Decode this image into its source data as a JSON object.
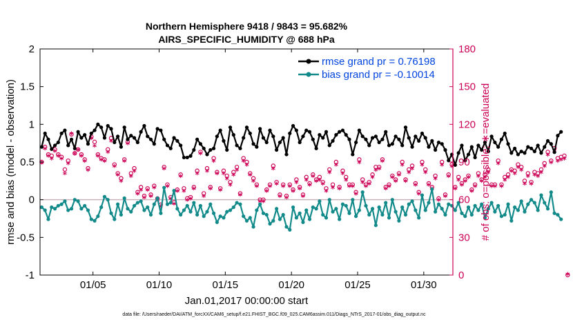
{
  "chart_data": {
    "type": "line",
    "title": "Northern Hemisphere 9418 / 9843 = 95.682%",
    "subtitle": "AIRS_SPECIFIC_HUMIDITY @ 688 hPa",
    "xlabel": "Jan.01,2017 00:00:00 start",
    "ylabel": "rmse and bias (model - observation)",
    "y2label": "# of obs: o=possible; ∗=evaluated",
    "footer": "data file: /Users/raeder/DAI/ATM_forcXX/CAM6_setup/f.e21.FHIST_BGC.f09_025.CAM6assim.011/Diags_NTrS_2017-01/obs_diag_output.nc",
    "xlim": [
      1,
      32.2
    ],
    "ylim": [
      -1,
      2
    ],
    "y2lim": [
      0,
      180
    ],
    "xticks": [
      {
        "v": 5,
        "label": "01/05"
      },
      {
        "v": 10,
        "label": "01/10"
      },
      {
        "v": 15,
        "label": "01/15"
      },
      {
        "v": 20,
        "label": "01/20"
      },
      {
        "v": 25,
        "label": "01/25"
      },
      {
        "v": 30,
        "label": "01/30"
      }
    ],
    "yticks": [
      {
        "v": -1,
        "label": "-1"
      },
      {
        "v": -0.5,
        "label": "-0.5"
      },
      {
        "v": 0,
        "label": "0"
      },
      {
        "v": 0.5,
        "label": "0.5"
      },
      {
        "v": 1,
        "label": "1"
      },
      {
        "v": 1.5,
        "label": "1.5"
      },
      {
        "v": 2,
        "label": "2"
      }
    ],
    "y2ticks": [
      {
        "v": 0,
        "label": "0"
      },
      {
        "v": 30,
        "label": "30"
      },
      {
        "v": 60,
        "label": "60"
      },
      {
        "v": 90,
        "label": "90"
      },
      {
        "v": 120,
        "label": "120"
      },
      {
        "v": 150,
        "label": "150"
      },
      {
        "v": 180,
        "label": "180"
      }
    ],
    "x": {
      "start": 1.125,
      "step": 0.25
    },
    "series": [
      {
        "name": "rmse grand pr = 0.76198",
        "color": "#000000",
        "values": [
          0.7,
          0.88,
          0.8,
          0.67,
          0.72,
          0.76,
          0.88,
          0.92,
          0.72,
          0.8,
          0.68,
          0.9,
          0.82,
          0.86,
          0.74,
          0.88,
          0.92,
          1.0,
          0.96,
          0.82,
          0.98,
          0.94,
          0.76,
          0.84,
          0.7,
          0.96,
          0.8,
          0.85,
          0.82,
          0.76,
          0.9,
          0.98,
          0.84,
          0.8,
          0.74,
          0.94,
          0.92,
          0.8,
          0.72,
          0.68,
          0.82,
          0.78,
          0.72,
          0.56,
          0.56,
          0.58,
          0.66,
          0.8,
          0.74,
          0.68,
          0.6,
          0.66,
          0.68,
          0.84,
          0.92,
          0.78,
          0.66,
          0.96,
          0.86,
          0.72,
          0.68,
          0.82,
          0.96,
          0.88,
          0.74,
          0.7,
          0.94,
          0.82,
          0.76,
          0.92,
          0.84,
          0.66,
          0.76,
          0.82,
          0.6,
          0.88,
          0.98,
          0.92,
          0.76,
          0.84,
          0.92,
          0.9,
          0.8,
          0.68,
          0.86,
          0.82,
          0.9,
          0.72,
          0.78,
          0.86,
          0.9,
          0.92,
          0.86,
          0.8,
          0.6,
          0.76,
          0.92,
          0.84,
          0.8,
          0.72,
          0.82,
          0.84,
          0.76,
          0.8,
          0.9,
          0.72,
          0.74,
          0.84,
          0.8,
          0.72,
          0.96,
          0.82,
          0.7,
          0.84,
          0.78,
          0.88,
          0.82,
          0.7,
          0.78,
          0.66,
          0.76,
          0.74,
          0.66,
          0.52,
          0.6,
          0.46,
          0.62,
          0.72,
          0.52,
          0.6,
          0.7,
          0.56,
          0.72,
          0.66,
          0.76,
          0.64,
          0.84,
          0.76,
          0.7,
          0.8,
          0.88,
          0.74,
          0.62,
          0.68,
          0.6,
          0.64,
          0.62,
          0.7,
          0.68,
          0.64,
          0.72,
          0.62,
          0.7,
          0.78,
          0.74,
          0.63,
          0.85,
          0.9
        ]
      },
      {
        "name": "bias grand pr = -0.10014",
        "color": "#138a8a",
        "values": [
          -0.1,
          -0.14,
          -0.26,
          -0.1,
          -0.12,
          -0.08,
          -0.06,
          -0.02,
          -0.14,
          -0.12,
          0.0,
          -0.02,
          -0.12,
          -0.08,
          -0.14,
          -0.26,
          -0.28,
          -0.22,
          -0.1,
          0.04,
          0.0,
          -0.18,
          -0.26,
          -0.06,
          -0.2,
          0.02,
          -0.12,
          -0.16,
          -0.08,
          -0.04,
          -0.02,
          -0.14,
          -0.1,
          -0.2,
          -0.06,
          0.02,
          -0.18,
          0.16,
          -0.06,
          -0.04,
          0.12,
          -0.12,
          -0.2,
          -0.14,
          -0.08,
          -0.16,
          -0.04,
          -0.2,
          -0.08,
          -0.22,
          -0.16,
          -0.06,
          -0.18,
          -0.3,
          -0.22,
          -0.24,
          -0.16,
          -0.14,
          -0.1,
          -0.04,
          -0.06,
          -0.22,
          -0.28,
          -0.24,
          -0.36,
          -0.14,
          -0.06,
          -0.18,
          -0.2,
          -0.32,
          -0.28,
          -0.12,
          -0.26,
          -0.2,
          -0.36,
          -0.4,
          -0.1,
          -0.24,
          -0.18,
          -0.3,
          -0.14,
          -0.26,
          -0.1,
          -0.12,
          -0.02,
          -0.2,
          -0.24,
          0.0,
          -0.16,
          -0.12,
          -0.26,
          -0.06,
          -0.08,
          -0.18,
          0.0,
          -0.22,
          -0.14,
          0.1,
          -0.08,
          -0.2,
          -0.12,
          -0.34,
          -0.1,
          -0.2,
          -0.04,
          -0.24,
          0.0,
          -0.16,
          -0.28,
          -0.1,
          -0.2,
          -0.06,
          -0.02,
          -0.14,
          -0.24,
          0.06,
          -0.14,
          -0.04,
          0.14,
          -0.16,
          -0.06,
          -0.12,
          -0.2,
          -0.06,
          -0.08,
          -0.14,
          -0.04,
          -0.18,
          -0.22,
          -0.1,
          -0.2,
          -0.08,
          -0.14,
          -0.06,
          -0.24,
          -0.12,
          -0.04,
          -0.16,
          -0.08,
          -0.22,
          -0.2,
          -0.06,
          -0.28,
          -0.1,
          -0.14,
          -0.02,
          -0.16,
          -0.06,
          0.0,
          -0.04,
          -0.14,
          0.06,
          -0.04,
          -0.12,
          0.1,
          -0.18,
          -0.2,
          -0.26
        ]
      }
    ],
    "obs_possible": [
      90,
      102,
      96,
      95,
      100,
      96,
      94,
      84,
      91,
      112,
      97,
      100,
      96,
      92,
      85,
      110,
      106,
      96,
      93,
      92,
      100,
      109,
      88,
      81,
      77,
      92,
      106,
      81,
      85,
      66,
      70,
      63,
      69,
      64,
      71,
      61,
      56,
      86,
      72,
      62,
      58,
      68,
      80,
      69,
      61,
      62,
      70,
      83,
      98,
      65,
      85,
      70,
      93,
      82,
      69,
      83,
      79,
      74,
      82,
      86,
      65,
      93,
      90,
      81,
      77,
      72,
      60,
      60,
      68,
      72,
      87,
      74,
      64,
      72,
      63,
      72,
      68,
      76,
      70,
      64,
      78,
      73,
      80,
      76,
      78,
      74,
      69,
      84,
      72,
      90,
      70,
      83,
      78,
      72,
      72,
      66,
      92,
      76,
      72,
      74,
      80,
      86,
      86,
      92,
      70,
      72,
      79,
      76,
      81,
      90,
      76,
      84,
      87,
      73,
      66,
      90,
      84,
      73,
      70,
      79,
      61,
      90,
      64,
      80,
      88,
      70,
      78,
      73,
      76,
      79,
      68,
      72,
      81,
      76,
      80,
      84,
      72,
      72,
      91,
      72,
      78,
      80,
      84,
      83,
      88,
      86,
      75,
      81,
      74,
      82,
      81,
      84,
      89,
      98,
      91,
      101,
      93,
      94,
      95,
      0
    ],
    "obs_evaluated": [
      89,
      100,
      94,
      92,
      98,
      94,
      92,
      80,
      88,
      112,
      96,
      99,
      94,
      90,
      83,
      108,
      102,
      94,
      91,
      90,
      97,
      106,
      86,
      79,
      74,
      90,
      104,
      78,
      82,
      64,
      67,
      61,
      67,
      62,
      69,
      59,
      54,
      84,
      70,
      60,
      56,
      66,
      78,
      66,
      59,
      60,
      68,
      80,
      96,
      62,
      82,
      68,
      90,
      80,
      67,
      80,
      76,
      71,
      79,
      83,
      63,
      90,
      87,
      79,
      74,
      70,
      58,
      58,
      66,
      70,
      84,
      72,
      62,
      70,
      61,
      70,
      66,
      73,
      68,
      62,
      75,
      71,
      78,
      74,
      75,
      72,
      66,
      81,
      69,
      87,
      68,
      80,
      75,
      70,
      70,
      64,
      89,
      73,
      70,
      72,
      77,
      83,
      84,
      90,
      68,
      70,
      77,
      74,
      79,
      87,
      74,
      81,
      84,
      71,
      64,
      87,
      81,
      71,
      68,
      76,
      59,
      87,
      62,
      78,
      86,
      68,
      75,
      71,
      74,
      77,
      66,
      70,
      78,
      74,
      77,
      81,
      70,
      70,
      88,
      70,
      75,
      77,
      82,
      80,
      85,
      83,
      72,
      78,
      72,
      79,
      78,
      81,
      86,
      95,
      89,
      98,
      90,
      91,
      92,
      0
    ],
    "colors": {
      "rmse": "#000000",
      "bias": "#138a8a",
      "obs": "#cc0055",
      "zero_line": "#c7b3b9",
      "legend_text": "#0044dd"
    }
  }
}
